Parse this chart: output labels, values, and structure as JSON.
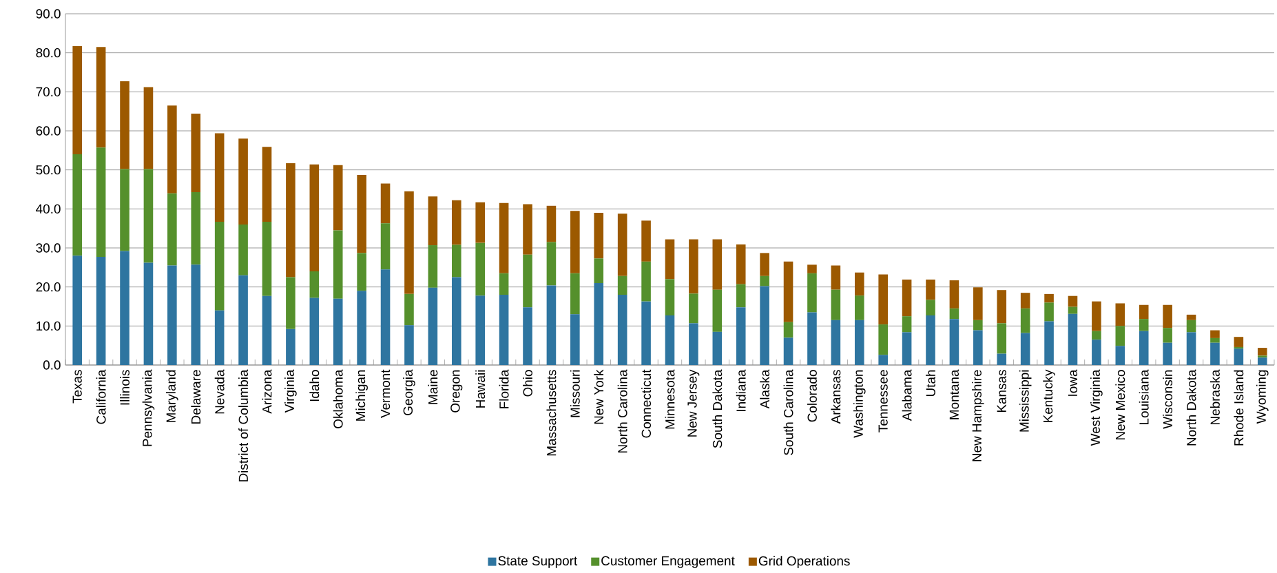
{
  "chart_data": {
    "type": "bar",
    "stacked": true,
    "grid": "y",
    "legend": "bottom",
    "categories": [
      "Texas",
      "California",
      "Illinois",
      "Pennsylvania",
      "Maryland",
      "Delaware",
      "Nevada",
      "District of Columbia",
      "Arizona",
      "Virginia",
      "Idaho",
      "Oklahoma",
      "Michigan",
      "Vermont",
      "Georgia",
      "Maine",
      "Oregon",
      "Hawaii",
      "Florida",
      "Ohio",
      "Massachusetts",
      "Missouri",
      "New York",
      "North Carolina",
      "Connecticut",
      "Minnesota",
      "New Jersey",
      "South Dakota",
      "Indiana",
      "Alaska",
      "South Carolina",
      "Colorado",
      "Arkansas",
      "Washington",
      "Tennessee",
      "Alabama",
      "Utah",
      "Montana",
      "New Hampshire",
      "Kansas",
      "Mississippi",
      "Kentucky",
      "Iowa",
      "West Virginia",
      "New Mexico",
      "Louisiana",
      "Wisconsin",
      "North Dakota",
      "Nebraska",
      "Rhode Island",
      "Wyoming"
    ],
    "ylim": [
      0,
      90
    ],
    "yticks": [
      {
        "value": 0,
        "label": "0.0"
      },
      {
        "value": 10,
        "label": "10.0"
      },
      {
        "value": 20,
        "label": "20.0"
      },
      {
        "value": 30,
        "label": "30.0"
      },
      {
        "value": 40,
        "label": "40.0"
      },
      {
        "value": 50,
        "label": "50.0"
      },
      {
        "value": 60,
        "label": "60.0"
      },
      {
        "value": 70,
        "label": "70.0"
      },
      {
        "value": 80,
        "label": "80.0"
      },
      {
        "value": 90,
        "label": "90.0"
      }
    ],
    "series": [
      {
        "name": "State Support",
        "color": "#2e75a0",
        "values": [
          28.0,
          27.7,
          29.2,
          26.2,
          25.5,
          25.7,
          14.0,
          23.0,
          17.7,
          9.2,
          17.2,
          17.0,
          19.0,
          24.5,
          10.2,
          19.8,
          22.5,
          17.8,
          18.0,
          14.8,
          20.4,
          13.0,
          21.0,
          18.0,
          16.3,
          12.7,
          10.7,
          8.5,
          14.8,
          20.2,
          7.0,
          13.5,
          11.5,
          11.5,
          2.6,
          8.4,
          12.7,
          11.8,
          8.9,
          2.9,
          8.2,
          11.2,
          13.1,
          6.5,
          4.9,
          8.7,
          5.7,
          8.4,
          5.7,
          4.2,
          1.9
        ]
      },
      {
        "name": "Customer Engagement",
        "color": "#55902c",
        "values": [
          26.0,
          28.0,
          21.0,
          24.0,
          18.5,
          18.6,
          22.7,
          13.0,
          19.0,
          13.3,
          6.8,
          17.5,
          9.7,
          11.8,
          8.0,
          10.9,
          8.3,
          13.5,
          5.5,
          13.5,
          11.1,
          10.5,
          6.3,
          4.8,
          10.2,
          9.3,
          7.6,
          10.8,
          5.9,
          2.6,
          4.0,
          10.0,
          7.8,
          6.3,
          7.8,
          4.1,
          4.0,
          2.7,
          2.6,
          7.8,
          6.3,
          4.8,
          1.8,
          2.2,
          5.1,
          3.1,
          3.8,
          3.1,
          1.2,
          0.4,
          0.5
        ]
      },
      {
        "name": "Grid Operations",
        "color": "#9c5900",
        "values": [
          27.7,
          25.8,
          22.5,
          21.0,
          22.5,
          20.1,
          22.7,
          22.0,
          19.2,
          29.2,
          27.4,
          16.7,
          20.0,
          10.2,
          26.3,
          12.5,
          11.4,
          10.4,
          18.0,
          12.9,
          9.3,
          16.0,
          11.7,
          16.0,
          10.5,
          10.2,
          13.9,
          12.9,
          10.2,
          5.9,
          15.5,
          2.2,
          6.2,
          5.9,
          12.8,
          9.4,
          5.2,
          7.2,
          8.4,
          8.5,
          4.0,
          2.2,
          2.8,
          7.6,
          5.8,
          3.6,
          5.9,
          1.4,
          2.0,
          2.6,
          2.0
        ]
      }
    ]
  }
}
